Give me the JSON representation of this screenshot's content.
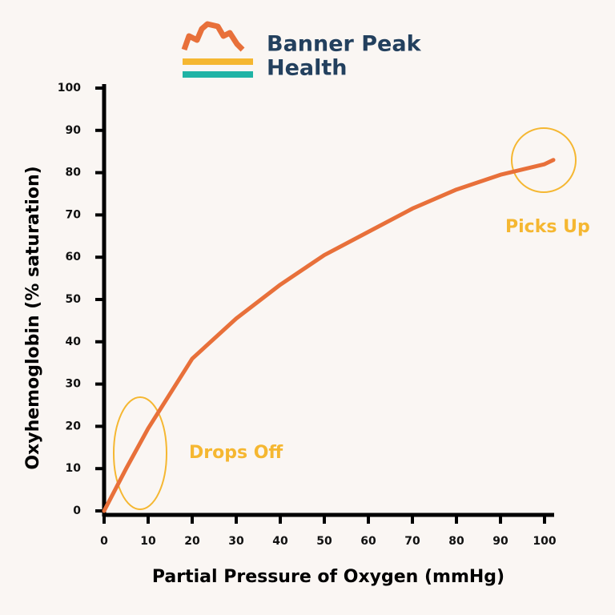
{
  "logo": [
    "Banner Peak",
    "Health"
  ],
  "chart_data": {
    "type": "line",
    "x_label": "Partial Pressure of Oxygen (mmHg)",
    "y_label": "Oxyhemoglobin (% saturation)",
    "x": [
      0,
      5,
      10,
      20,
      30,
      40,
      50,
      60,
      70,
      80,
      90,
      100,
      102
    ],
    "series": [
      {
        "name": "Oxyhemoglobin saturation",
        "color": "#e8703a",
        "values": [
          0,
          10,
          19.5,
          36,
          45.5,
          53.5,
          60.5,
          66,
          71.5,
          76,
          79.5,
          82,
          83
        ]
      }
    ],
    "xlim": [
      0,
      100
    ],
    "ylim": [
      0,
      100
    ],
    "xticks": [
      0,
      10,
      20,
      30,
      40,
      50,
      60,
      70,
      80,
      90,
      100
    ],
    "yticks": [
      0,
      10,
      20,
      30,
      40,
      50,
      60,
      70,
      80,
      90,
      100
    ],
    "grid": false,
    "annotations": [
      "Drops Off",
      "Picks Up"
    ],
    "annotation_color": "#f5b731"
  }
}
